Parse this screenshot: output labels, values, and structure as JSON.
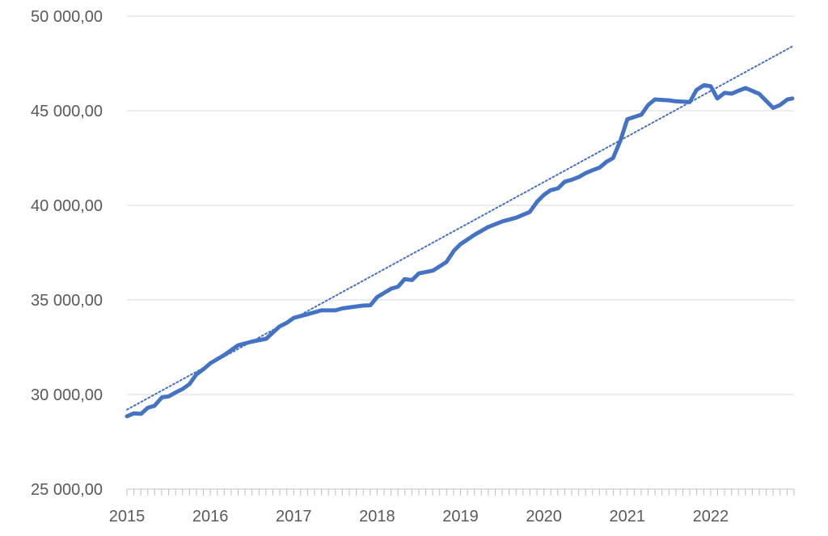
{
  "chart_data": {
    "type": "line",
    "title": "",
    "xlabel": "",
    "ylabel": "",
    "x_range": [
      2015.0,
      2023.0
    ],
    "ylim": [
      25000,
      50000
    ],
    "y_ticks": [
      25000,
      30000,
      35000,
      40000,
      45000,
      50000
    ],
    "y_tick_labels": [
      "25 000,00",
      "30 000,00",
      "35 000,00",
      "40 000,00",
      "45 000,00",
      "50 000,00"
    ],
    "x_tick_labels": [
      "2015",
      "2016",
      "2017",
      "2018",
      "2019",
      "2020",
      "2021",
      "2022"
    ],
    "grid": "horizontal",
    "legend": "none",
    "series": [
      {
        "color": "#4472c4",
        "style": "solid",
        "x": [
          2015.0,
          2015.08,
          2015.17,
          2015.25,
          2015.33,
          2015.42,
          2015.5,
          2015.58,
          2015.67,
          2015.75,
          2015.83,
          2015.92,
          2016.0,
          2016.17,
          2016.33,
          2016.5,
          2016.67,
          2016.83,
          2016.92,
          2017.0,
          2017.17,
          2017.33,
          2017.5,
          2017.58,
          2017.83,
          2017.92,
          2018.0,
          2018.17,
          2018.25,
          2018.33,
          2018.42,
          2018.5,
          2018.67,
          2018.83,
          2018.92,
          2019.0,
          2019.17,
          2019.33,
          2019.5,
          2019.67,
          2019.83,
          2019.92,
          2020.0,
          2020.08,
          2020.17,
          2020.25,
          2020.33,
          2020.42,
          2020.5,
          2020.58,
          2020.67,
          2020.75,
          2020.83,
          2020.92,
          2021.0,
          2021.17,
          2021.25,
          2021.33,
          2021.5,
          2021.58,
          2021.67,
          2021.75,
          2021.83,
          2021.92,
          2022.0,
          2022.08,
          2022.17,
          2022.25,
          2022.33,
          2022.42,
          2022.5,
          2022.58,
          2022.75,
          2022.83,
          2022.92,
          2022.98
        ],
        "values": [
          28850,
          29000,
          28980,
          29300,
          29400,
          29850,
          29900,
          30100,
          30300,
          30550,
          31050,
          31350,
          31650,
          32100,
          32600,
          32800,
          32950,
          33600,
          33800,
          34050,
          34250,
          34450,
          34450,
          34550,
          34700,
          34720,
          35150,
          35600,
          35700,
          36100,
          36050,
          36400,
          36550,
          37000,
          37600,
          37950,
          38450,
          38850,
          39150,
          39350,
          39650,
          40200,
          40550,
          40800,
          40900,
          41250,
          41350,
          41500,
          41700,
          41850,
          42000,
          42300,
          42500,
          43450,
          44550,
          44800,
          45300,
          45600,
          45550,
          45500,
          45480,
          45460,
          46100,
          46350,
          46300,
          45650,
          45950,
          45900,
          46050,
          46200,
          46050,
          45900,
          45150,
          45300,
          45600,
          45650
        ]
      },
      {
        "color": "#4472c4",
        "style": "dotted",
        "type": "linear trendline",
        "x": [
          2015.0,
          2022.98
        ],
        "values": [
          29200,
          48400
        ]
      }
    ]
  }
}
